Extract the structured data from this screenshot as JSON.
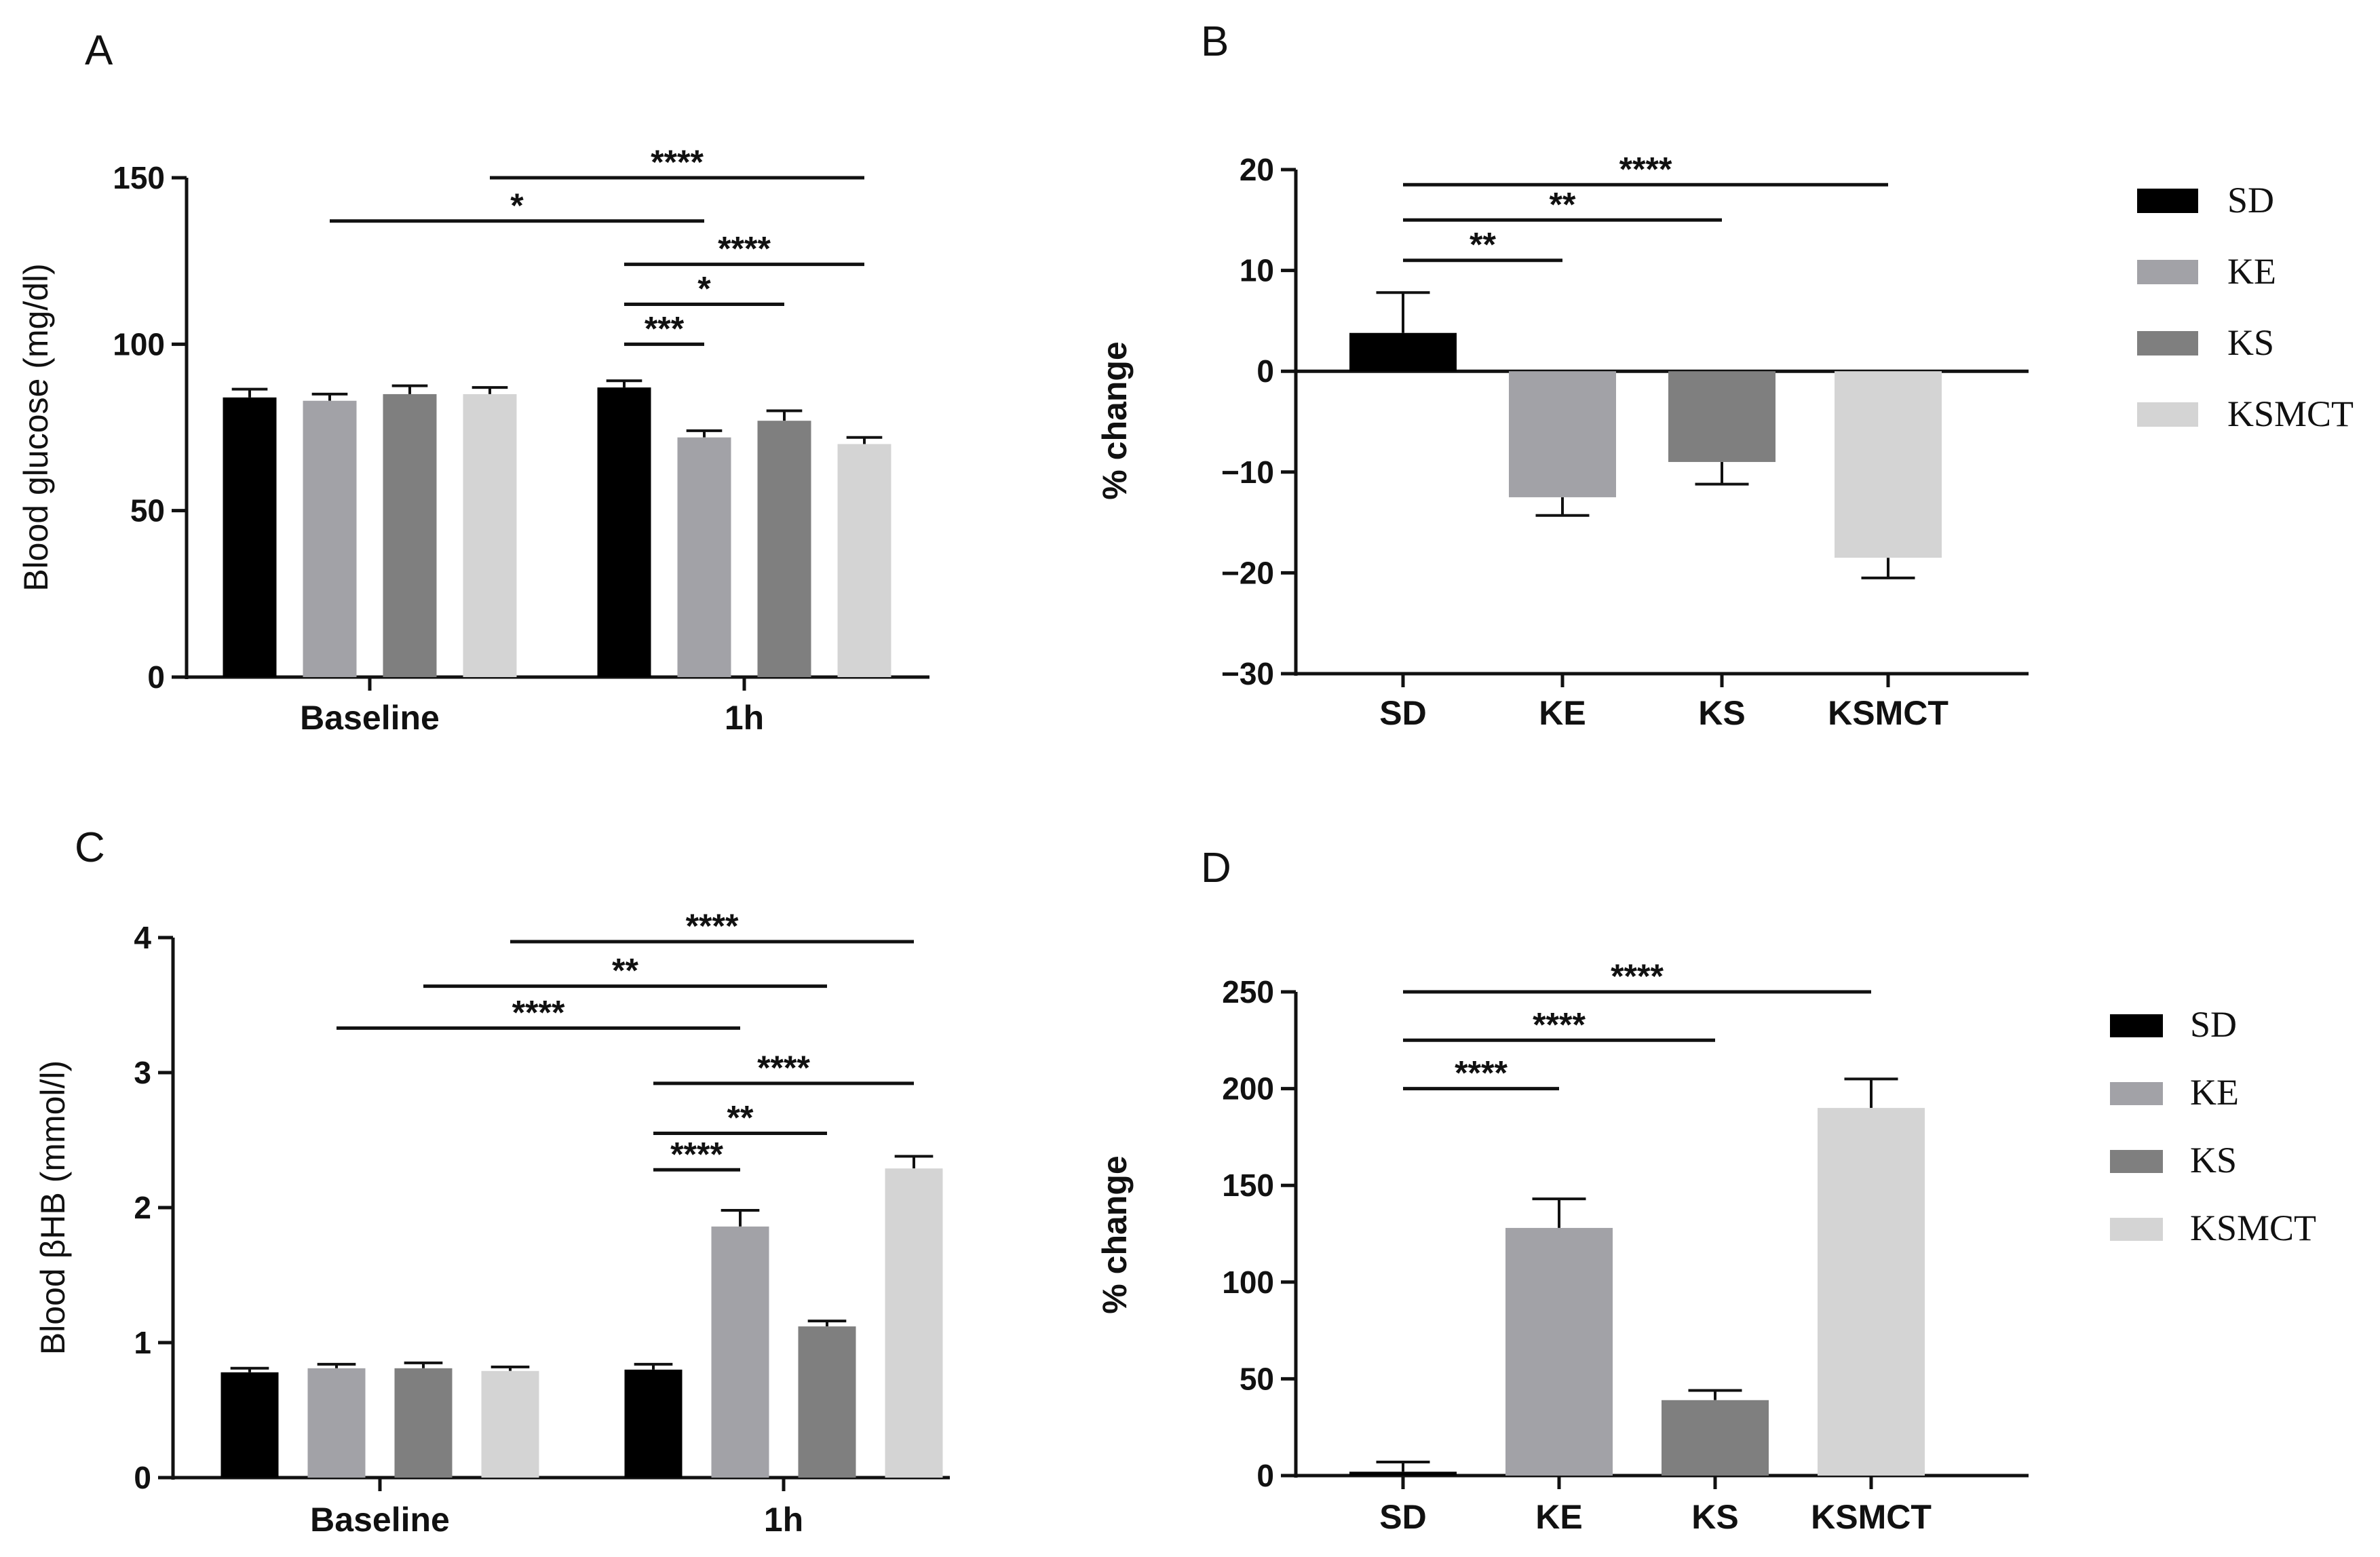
{
  "colors": {
    "SD": "#000000",
    "KE": "#a2a2a7",
    "KS": "#7f7f7f",
    "KSMCT": "#d4d4d4",
    "axis": "#111111"
  },
  "legend_panel_B": [
    "SD",
    "KE",
    "KS",
    "KSMCT"
  ],
  "legend_panel_D": [
    "SD",
    "KE",
    "KS",
    "KSMCT"
  ],
  "chart_data": [
    {
      "panel": "A",
      "type": "bar",
      "ylabel": "Blood glucose (mg/dl)",
      "ylim": [
        0,
        150
      ],
      "yticks": [
        "0",
        "50",
        "100",
        "150"
      ],
      "categories": [
        "Baseline",
        "1h"
      ],
      "series": [
        {
          "name": "SD",
          "values": [
            84,
            87
          ],
          "errors": [
            2.5,
            2
          ]
        },
        {
          "name": "KE",
          "values": [
            83,
            72
          ],
          "errors": [
            2,
            2
          ]
        },
        {
          "name": "KS",
          "values": [
            85,
            77
          ],
          "errors": [
            2.5,
            3
          ]
        },
        {
          "name": "KSMCT",
          "values": [
            85,
            70
          ],
          "errors": [
            2,
            2
          ]
        }
      ],
      "significance": [
        {
          "from": [
            1,
            0
          ],
          "to": [
            1,
            1
          ],
          "label": "***",
          "y": 100
        },
        {
          "from": [
            1,
            0
          ],
          "to": [
            1,
            2
          ],
          "label": "*",
          "y": 112
        },
        {
          "from": [
            1,
            0
          ],
          "to": [
            1,
            3
          ],
          "label": "****",
          "y": 124
        },
        {
          "from": [
            0,
            1
          ],
          "to": [
            1,
            1
          ],
          "label": "*",
          "y": 137
        },
        {
          "from": [
            0,
            3
          ],
          "to": [
            1,
            3
          ],
          "label": "****",
          "y": 150
        }
      ]
    },
    {
      "panel": "B",
      "type": "bar",
      "ylabel": "% change",
      "ylim": [
        -30,
        20
      ],
      "yticks": [
        "−30",
        "−20",
        "−10",
        "0",
        "10",
        "20"
      ],
      "categories": [
        "SD",
        "KE",
        "KS",
        "KSMCT"
      ],
      "values": [
        3.8,
        -12.5,
        -9,
        -18.5
      ],
      "errors": [
        4,
        1.8,
        2.2,
        2
      ],
      "significance": [
        {
          "from": 0,
          "to": 1,
          "label": "**",
          "y": 11
        },
        {
          "from": 0,
          "to": 2,
          "label": "**",
          "y": 15
        },
        {
          "from": 0,
          "to": 3,
          "label": "****",
          "y": 18.5
        }
      ]
    },
    {
      "panel": "C",
      "type": "bar",
      "ylabel": "Blood βHB (mmol/l)",
      "ylim": [
        0,
        4
      ],
      "yticks": [
        "0",
        "1",
        "2",
        "3",
        "4"
      ],
      "categories": [
        "Baseline",
        "1h"
      ],
      "series": [
        {
          "name": "SD",
          "values": [
            0.78,
            0.8
          ],
          "errors": [
            0.03,
            0.04
          ]
        },
        {
          "name": "KE",
          "values": [
            0.81,
            1.86
          ],
          "errors": [
            0.03,
            0.12
          ]
        },
        {
          "name": "KS",
          "values": [
            0.81,
            1.12
          ],
          "errors": [
            0.04,
            0.04
          ]
        },
        {
          "name": "KSMCT",
          "values": [
            0.79,
            2.29
          ],
          "errors": [
            0.03,
            0.09
          ]
        }
      ],
      "significance": [
        {
          "from": [
            1,
            0
          ],
          "to": [
            1,
            1
          ],
          "label": "****",
          "y": 2.28
        },
        {
          "from": [
            1,
            0
          ],
          "to": [
            1,
            2
          ],
          "label": "**",
          "y": 2.55
        },
        {
          "from": [
            1,
            0
          ],
          "to": [
            1,
            3
          ],
          "label": "****",
          "y": 2.92
        },
        {
          "from": [
            0,
            1
          ],
          "to": [
            1,
            1
          ],
          "label": "****",
          "y": 3.33
        },
        {
          "from": [
            0,
            2
          ],
          "to": [
            1,
            2
          ],
          "label": "**",
          "y": 3.64
        },
        {
          "from": [
            0,
            3
          ],
          "to": [
            1,
            3
          ],
          "label": "****",
          "y": 3.97
        }
      ]
    },
    {
      "panel": "D",
      "type": "bar",
      "ylabel": "% change",
      "ylim": [
        0,
        250
      ],
      "yticks": [
        "0",
        "50",
        "100",
        "150",
        "200",
        "250"
      ],
      "categories": [
        "SD",
        "KE",
        "KS",
        "KSMCT"
      ],
      "values": [
        2,
        128,
        39,
        190
      ],
      "errors": [
        5,
        15,
        5,
        15
      ],
      "significance": [
        {
          "from": 0,
          "to": 1,
          "label": "****",
          "y": 200
        },
        {
          "from": 0,
          "to": 2,
          "label": "****",
          "y": 225
        },
        {
          "from": 0,
          "to": 3,
          "label": "****",
          "y": 250
        }
      ]
    }
  ],
  "panel_labels": [
    "A",
    "B",
    "C",
    "D"
  ]
}
